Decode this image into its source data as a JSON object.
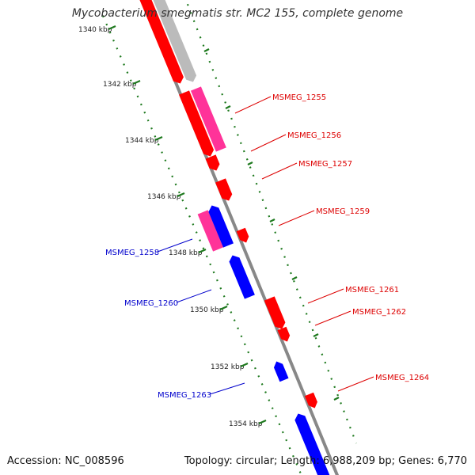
{
  "title": "Mycobacterium smegmatis str. MC2 155, complete genome",
  "footer": {
    "accession": "Accession: NC_008596",
    "topology": "Topology: circular; Length: 6,988,209 bp; Genes: 6,770"
  },
  "colors": {
    "forward_gene": "#ff0000",
    "forward_gene_alt": "#ff3399",
    "reverse_gene": "#0000ff",
    "other_feature": "#bbbbbb",
    "backbone": "#888888",
    "ruler": "#1f7a1f",
    "label_forward": "#dd0000",
    "label_reverse": "#0000cc"
  },
  "ruler_ticks": [
    "1340 kbp",
    "1342 kbp",
    "1344 kbp",
    "1346 kbp",
    "1348 kbp",
    "1350 kbp",
    "1352 kbp",
    "1354 kbp"
  ],
  "genes_forward": [
    "MSMEG_1255",
    "MSMEG_1256",
    "MSMEG_1257",
    "MSMEG_1259",
    "MSMEG_1261",
    "MSMEG_1262",
    "MSMEG_1264"
  ],
  "genes_reverse": [
    "MSMEG_1258",
    "MSMEG_1260",
    "MSMEG_1263"
  ]
}
